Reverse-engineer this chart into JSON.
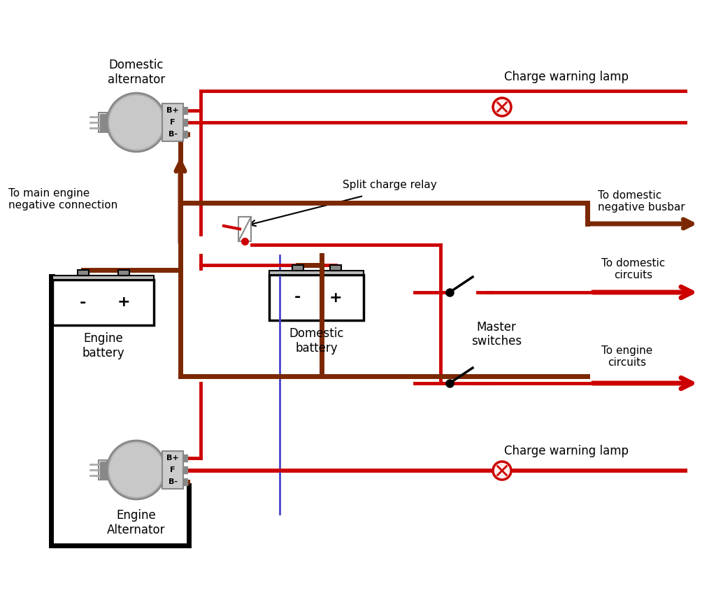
{
  "bg_color": "#ffffff",
  "red": "#cc0000",
  "brown": "#7B2800",
  "black": "#000000",
  "blue": "#4444cc",
  "gray_light": "#d0d0d0",
  "gray_med": "#b0b0b0",
  "gray_dark": "#888888",
  "labels": {
    "domestic_alt": "Domestic\nalternator",
    "engine_alt": "Engine\nAlternator",
    "engine_battery": "Engine\nbattery",
    "domestic_battery": "Domestic\nbattery",
    "split_charge_relay": "Split charge relay",
    "charge_warning_lamp_top": "Charge warning lamp",
    "charge_warning_lamp_bottom": "Charge warning lamp",
    "to_main_engine": "To main engine\nnegative connection",
    "to_domestic_neg": "To domestic\nnegative busbar",
    "to_domestic_circuits": "To domestic\ncircuits",
    "to_engine_circuits": "To engine\ncircuits",
    "master_switches": "Master\nswitches"
  }
}
